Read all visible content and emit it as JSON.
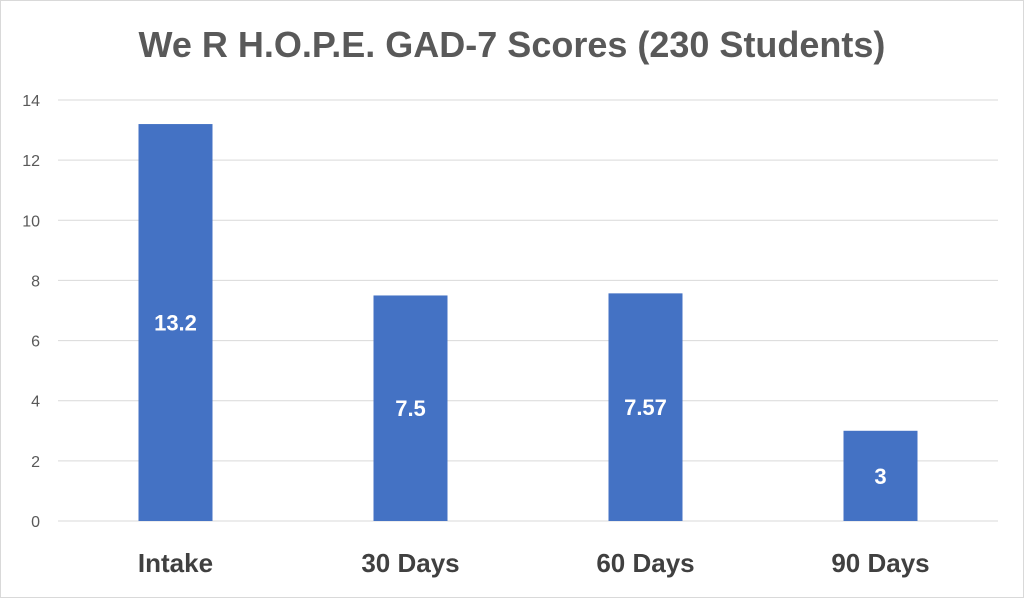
{
  "chart_data": {
    "type": "bar",
    "title": "We R H.O.P.E. GAD-7 Scores (230 Students)",
    "categories": [
      "Intake",
      "30 Days",
      "60 Days",
      "90 Days"
    ],
    "values": [
      13.2,
      7.5,
      7.57,
      3
    ],
    "data_labels": [
      "13.2",
      "7.5",
      "7.57",
      "3"
    ],
    "ylim": [
      0,
      14
    ],
    "yticks": [
      0,
      2,
      4,
      6,
      8,
      10,
      12,
      14
    ],
    "grid": true,
    "legend": "none",
    "bar_color": "#4472c4",
    "gridline_color": "#d9d9d9"
  }
}
